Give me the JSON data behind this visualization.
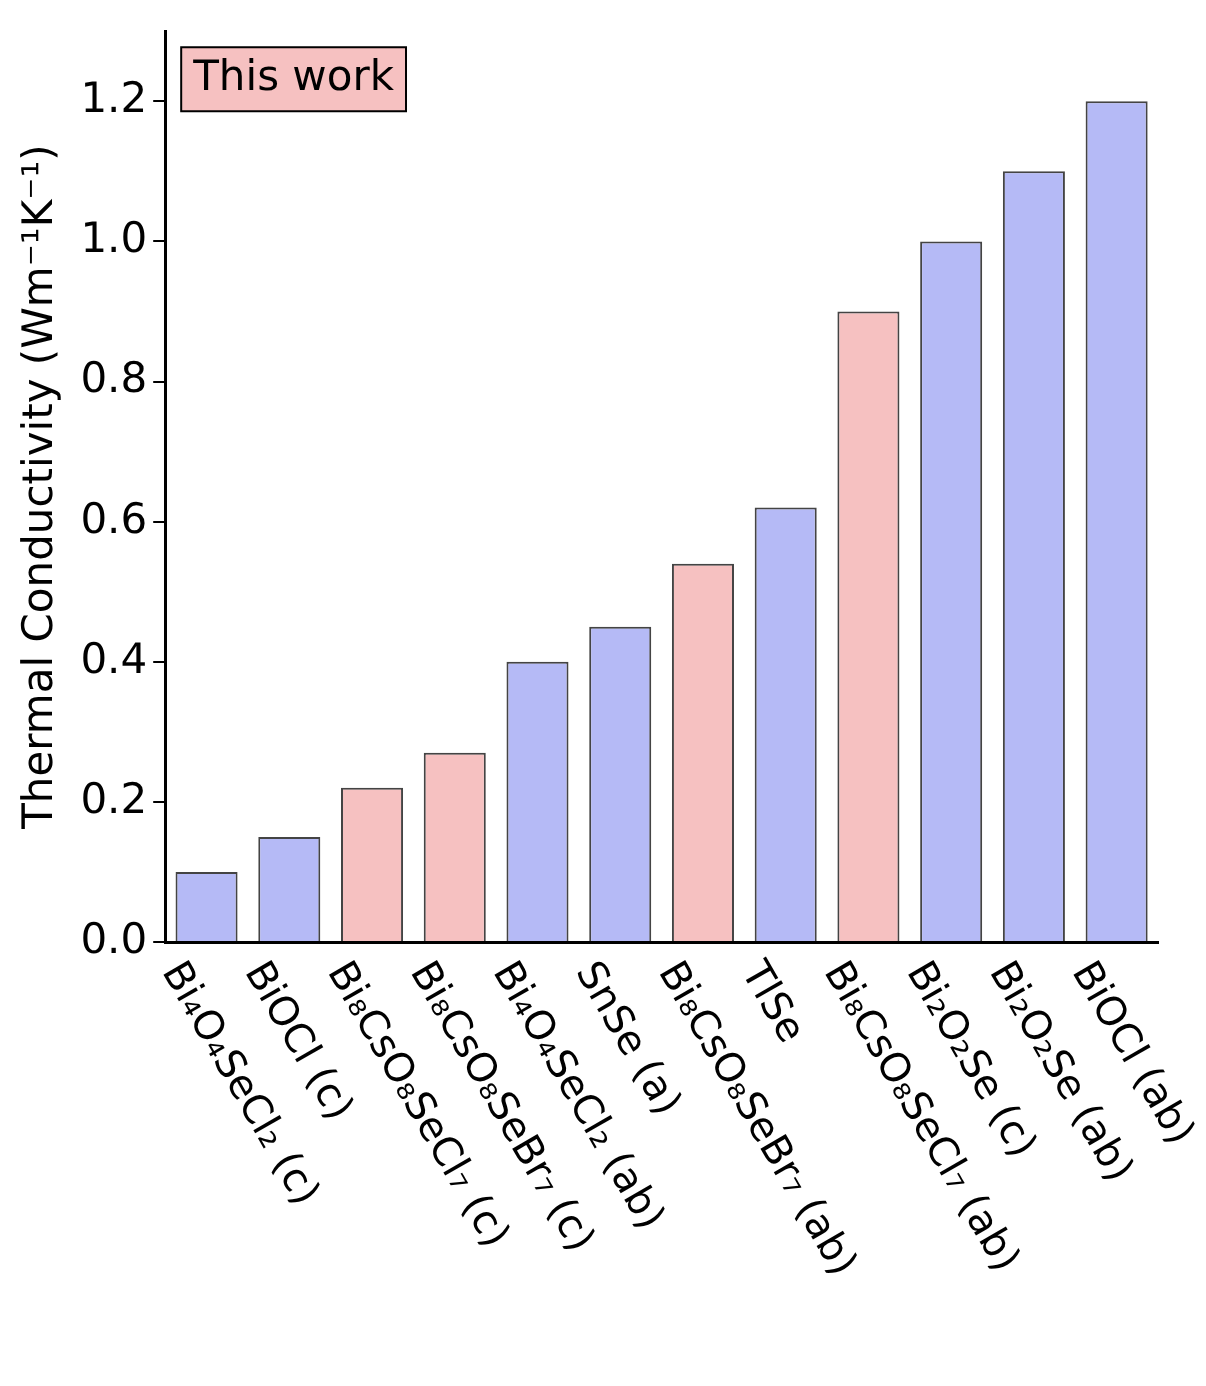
{
  "chart_data": {
    "type": "bar",
    "ylabel": "Thermal Conductivity (Wm⁻¹K⁻¹)",
    "categories": [
      "Bi₄O₄SeCl₂ (c)",
      "BiOCl (c)",
      "Bi₈CsO₈SeCl₇ (c)",
      "Bi₈CsO₈SeBr₇ (c)",
      "Bi₄O₄SeCl₂ (ab)",
      "SnSe (a)",
      "Bi₈CsO₈SeBr₇ (ab)",
      "TlSe",
      "Bi₈CsO₈SeCl₇ (ab)",
      "Bi₂O₂Se (c)",
      "Bi₂O₂Se (ab)",
      "BiOCl (ab)"
    ],
    "series": [
      {
        "name": "This work",
        "color": "#f6c1c1",
        "values": [
          null,
          null,
          0.22,
          0.27,
          null,
          null,
          0.54,
          null,
          0.9,
          null,
          null,
          null
        ]
      },
      {
        "color": "#b5baf6",
        "values": [
          0.1,
          0.15,
          null,
          null,
          0.4,
          0.45,
          null,
          0.62,
          null,
          1.0,
          1.1,
          1.2
        ]
      }
    ],
    "stacked": true,
    "ylim": [
      0,
      1.3
    ],
    "yticks": [
      {
        "value": 0,
        "label": "0.0"
      },
      0.2,
      0.4,
      0.6,
      0.8,
      {
        "value": 1,
        "label": "1.0"
      },
      1.2
    ],
    "legend": "top left"
  }
}
